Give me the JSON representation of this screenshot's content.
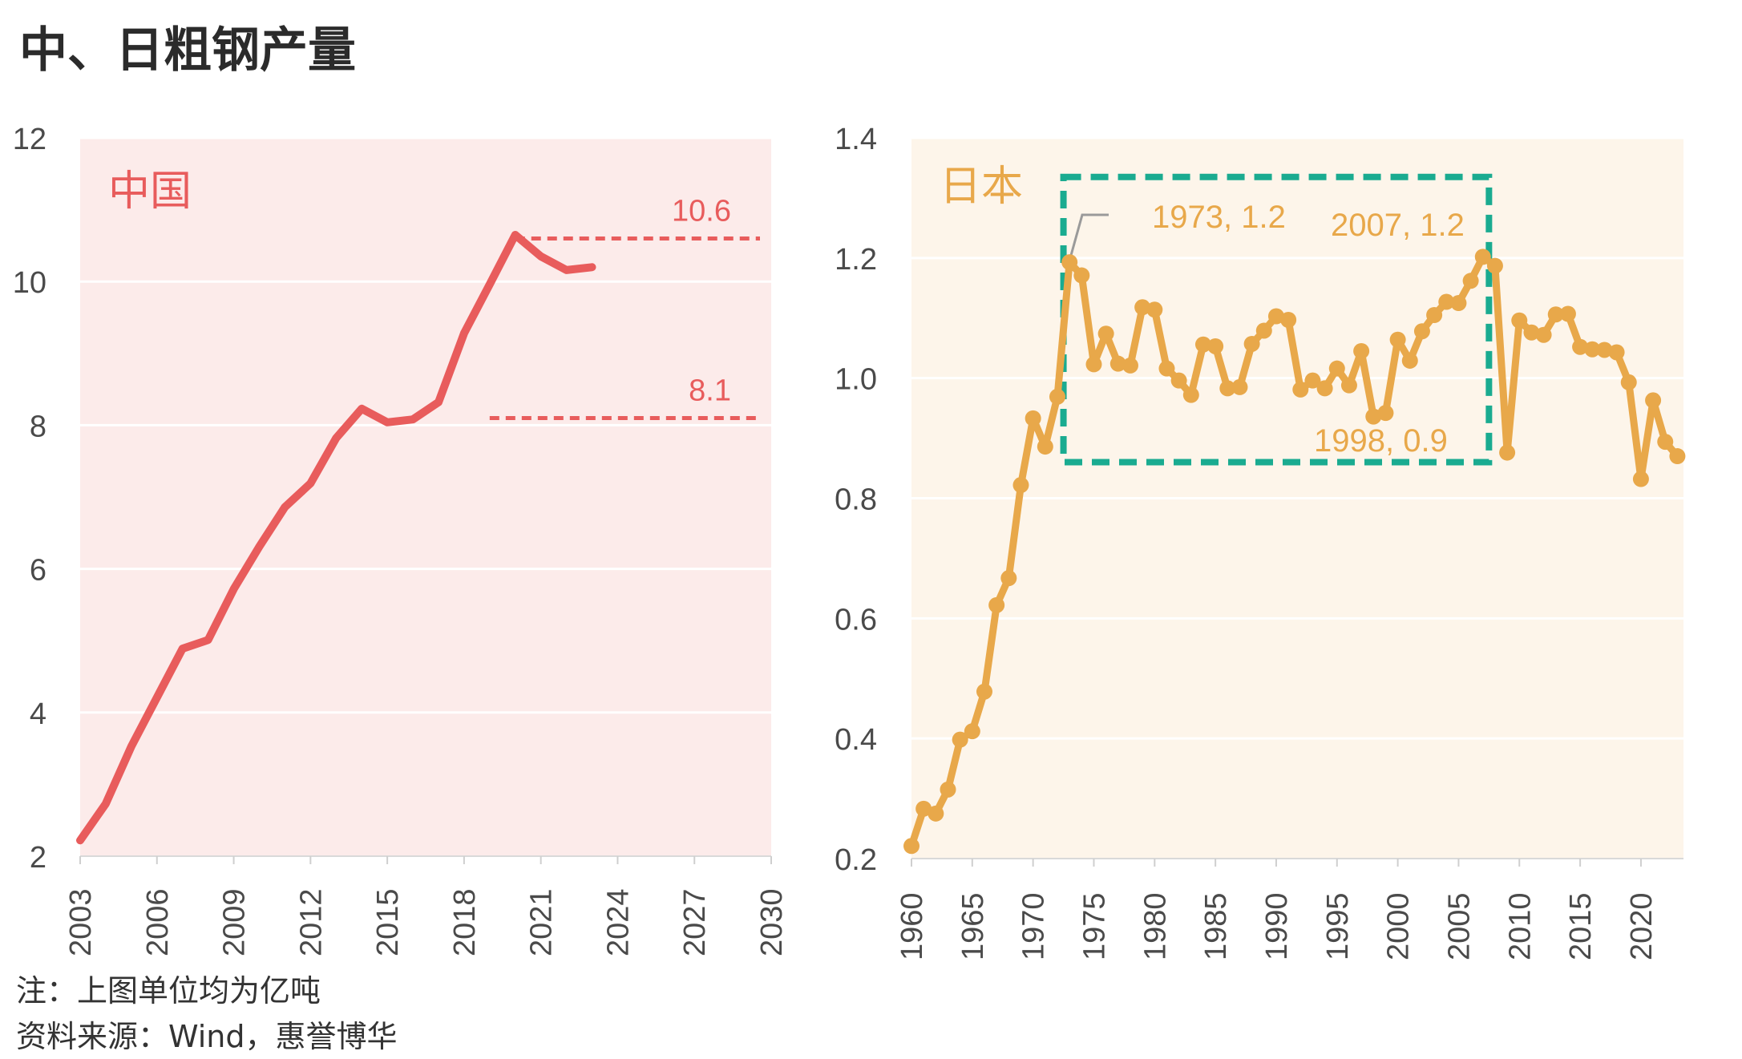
{
  "title": "中、日粗钢产量",
  "notes": {
    "unit_note": "注：上图单位均为亿吨",
    "source": "资料来源：Wind，惠誉博华"
  },
  "colors": {
    "china_line": "#e85c5c",
    "china_bg": "#fcebea",
    "japan_line": "#e8a84a",
    "japan_bg": "#fdf5ea",
    "highlight_box": "#1aab90",
    "grid": "#ffffff"
  },
  "chart_data": [
    {
      "type": "line",
      "panel_label": "中国",
      "x_ticks": [
        2003,
        2006,
        2009,
        2012,
        2015,
        2018,
        2021,
        2024,
        2027,
        2030
      ],
      "y_ticks": [
        2,
        4,
        6,
        8,
        10,
        12
      ],
      "xlim": [
        2003,
        2030
      ],
      "ylim": [
        2,
        12
      ],
      "grid": true,
      "series": [
        {
          "x": [
            2003,
            2004,
            2005,
            2006,
            2007,
            2008,
            2009,
            2010,
            2011,
            2012,
            2013,
            2014,
            2015,
            2016,
            2017,
            2018,
            2019,
            2020,
            2021,
            2022,
            2023
          ],
          "values": [
            2.22,
            2.73,
            3.53,
            4.21,
            4.89,
            5.01,
            5.72,
            6.31,
            6.86,
            7.19,
            7.82,
            8.23,
            8.04,
            8.08,
            8.32,
            9.28,
            9.96,
            10.65,
            10.35,
            10.16,
            10.2
          ]
        }
      ],
      "reference_lines": [
        {
          "value": 10.6,
          "label": "10.6",
          "x_start": 2020
        },
        {
          "value": 8.1,
          "label": "8.1",
          "x_start": 2019
        }
      ]
    },
    {
      "type": "line",
      "panel_label": "日本",
      "x_ticks": [
        1960,
        1965,
        1970,
        1975,
        1980,
        1985,
        1990,
        1995,
        2000,
        2005,
        2010,
        2015,
        2020
      ],
      "y_ticks": [
        "0.2",
        "0.4",
        "0.6",
        "0.8",
        "1.0",
        "1.2",
        "1.4"
      ],
      "xlim": [
        1960,
        2023.5
      ],
      "ylim": [
        0.2,
        1.4
      ],
      "grid": true,
      "series": [
        {
          "x": [
            1960,
            1961,
            1962,
            1963,
            1964,
            1965,
            1966,
            1967,
            1968,
            1969,
            1970,
            1971,
            1972,
            1973,
            1974,
            1975,
            1976,
            1977,
            1978,
            1979,
            1980,
            1981,
            1982,
            1983,
            1984,
            1985,
            1986,
            1987,
            1988,
            1989,
            1990,
            1991,
            1992,
            1993,
            1994,
            1995,
            1996,
            1997,
            1998,
            1999,
            2000,
            2001,
            2002,
            2003,
            2004,
            2005,
            2006,
            2007,
            2008,
            2009,
            2010,
            2011,
            2012,
            2013,
            2014,
            2015,
            2016,
            2017,
            2018,
            2019,
            2020,
            2021,
            2022,
            2023
          ],
          "values": [
            0.221,
            0.283,
            0.275,
            0.315,
            0.398,
            0.412,
            0.478,
            0.622,
            0.667,
            0.822,
            0.933,
            0.886,
            0.969,
            1.193,
            1.171,
            1.023,
            1.074,
            1.024,
            1.021,
            1.118,
            1.114,
            1.016,
            0.996,
            0.972,
            1.056,
            1.053,
            0.983,
            0.985,
            1.057,
            1.079,
            1.103,
            1.097,
            0.981,
            0.996,
            0.983,
            1.016,
            0.988,
            1.045,
            0.936,
            0.942,
            1.064,
            1.029,
            1.078,
            1.105,
            1.127,
            1.125,
            1.162,
            1.202,
            1.187,
            0.876,
            1.096,
            1.076,
            1.072,
            1.106,
            1.107,
            1.052,
            1.048,
            1.047,
            1.043,
            0.993,
            0.832,
            0.963,
            0.894,
            0.87
          ]
        }
      ],
      "annotations": [
        {
          "label": "1973, 1.2",
          "year": 1973,
          "value": 1.193
        },
        {
          "label": "2007, 1.2",
          "year": 2007,
          "value": 1.202
        },
        {
          "label": "1998, 0.9",
          "year": 1998,
          "value": 0.936
        }
      ],
      "highlight_box": {
        "x_from": 1972.5,
        "x_to": 2007.5,
        "y_from": 0.86,
        "y_to": 1.335
      }
    }
  ]
}
